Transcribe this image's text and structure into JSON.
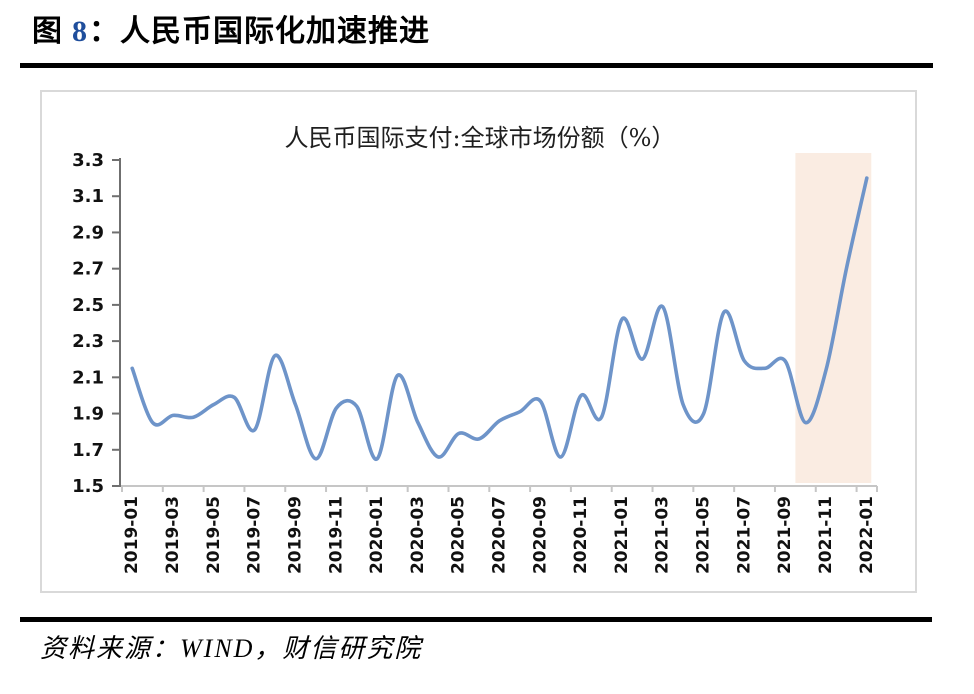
{
  "page": {
    "figure_label": "图",
    "figure_number": "8",
    "figure_colon": "：",
    "figure_title": "人民币国际化加速推进",
    "source_text": "资料来源：WIND，财信研究院"
  },
  "colors": {
    "line": "#6E94C9",
    "highlight": "#FAECE2",
    "figure_number_blue": "#1F4E9C",
    "y_axis": "#6F6F6F",
    "x_axis": "#C6C6C6",
    "chart_border": "#D9D9D9",
    "divider": "#000000"
  },
  "chart_data": {
    "type": "line",
    "title": "人民币国际支付:全球市场份额（%）",
    "xlabel": "",
    "ylabel": "",
    "ylim": [
      1.5,
      3.3
    ],
    "y_ticks": [
      1.5,
      1.7,
      1.9,
      2.1,
      2.3,
      2.5,
      2.7,
      2.9,
      3.1,
      3.3
    ],
    "grid": false,
    "legend": "none",
    "smoothed": true,
    "line_color": "#6E94C9",
    "highlight_color": "#FAECE2",
    "highlight_region": {
      "from": "2021-10",
      "to": "2022-01"
    },
    "xtick_every": 2,
    "x_tick_labels": [
      "2019-01",
      "2019-03",
      "2019-05",
      "2019-07",
      "2019-09",
      "2019-11",
      "2020-01",
      "2020-03",
      "2020-05",
      "2020-07",
      "2020-09",
      "2020-11",
      "2021-01",
      "2021-03",
      "2021-05",
      "2021-07",
      "2021-09",
      "2021-11",
      "2022-01"
    ],
    "x": [
      "2019-01",
      "2019-02",
      "2019-03",
      "2019-04",
      "2019-05",
      "2019-06",
      "2019-07",
      "2019-08",
      "2019-09",
      "2019-10",
      "2019-11",
      "2019-12",
      "2020-01",
      "2020-02",
      "2020-03",
      "2020-04",
      "2020-05",
      "2020-06",
      "2020-07",
      "2020-08",
      "2020-09",
      "2020-10",
      "2020-11",
      "2020-12",
      "2021-01",
      "2021-02",
      "2021-03",
      "2021-04",
      "2021-05",
      "2021-06",
      "2021-07",
      "2021-08",
      "2021-09",
      "2021-10",
      "2021-11",
      "2021-12",
      "2022-01"
    ],
    "values": [
      2.15,
      1.85,
      1.89,
      1.88,
      1.95,
      1.99,
      1.81,
      2.22,
      1.95,
      1.65,
      1.93,
      1.94,
      1.65,
      2.11,
      1.85,
      1.66,
      1.79,
      1.76,
      1.86,
      1.91,
      1.97,
      1.66,
      2.0,
      1.88,
      2.42,
      2.2,
      2.49,
      1.95,
      1.9,
      2.46,
      2.19,
      2.15,
      2.19,
      1.85,
      2.14,
      2.7,
      3.2
    ]
  }
}
